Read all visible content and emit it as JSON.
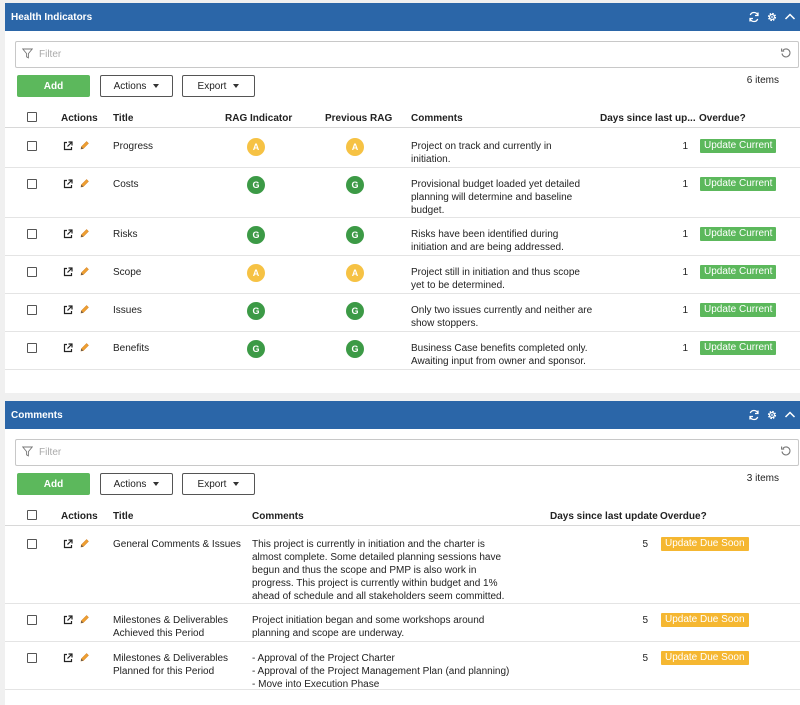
{
  "colors": {
    "header": "#2b66a8",
    "add": "#5cb85c",
    "green_rag": "#3c9a46",
    "amber_rag": "#f6c244",
    "update_current": "#5cb85c",
    "update_due_soon": "#f5b731"
  },
  "health": {
    "title": "Health Indicators",
    "filter_placeholder": "Filter",
    "add_label": "Add",
    "actions_label": "Actions",
    "export_label": "Export",
    "count": "6 items",
    "columns": {
      "actions": "Actions",
      "title": "Title",
      "rag": "RAG Indicator",
      "prev_rag": "Previous RAG",
      "comments": "Comments",
      "days": "Days since last up...",
      "overdue": "Overdue?"
    },
    "rows": [
      {
        "title": "Progress",
        "rag": "A",
        "prev_rag": "A",
        "comment": [
          "Project on track and currently in",
          "initiation."
        ],
        "days": "1",
        "status": "Update Current"
      },
      {
        "title": "Costs",
        "rag": "G",
        "prev_rag": "G",
        "comment": [
          "Provisional budget loaded yet detailed",
          "planning will determine and baseline",
          "budget."
        ],
        "days": "1",
        "status": "Update Current"
      },
      {
        "title": "Risks",
        "rag": "G",
        "prev_rag": "G",
        "comment": [
          "Risks have been identified during",
          "initiation and are being addressed."
        ],
        "days": "1",
        "status": "Update Current"
      },
      {
        "title": "Scope",
        "rag": "A",
        "prev_rag": "A",
        "comment": [
          "Project still in initiation and thus scope",
          "yet to be determined."
        ],
        "days": "1",
        "status": "Update Current"
      },
      {
        "title": "Issues",
        "rag": "G",
        "prev_rag": "G",
        "comment": [
          "Only two issues currently and neither are",
          "show stoppers."
        ],
        "days": "1",
        "status": "Update Current"
      },
      {
        "title": "Benefits",
        "rag": "G",
        "prev_rag": "G",
        "comment": [
          "Business Case benefits completed only.",
          "Awaiting input from owner and sponsor."
        ],
        "days": "1",
        "status": "Update Current"
      }
    ]
  },
  "comments": {
    "title": "Comments",
    "filter_placeholder": "Filter",
    "add_label": "Add",
    "actions_label": "Actions",
    "export_label": "Export",
    "count": "3 items",
    "columns": {
      "actions": "Actions",
      "title": "Title",
      "comments": "Comments",
      "days": "Days since last update",
      "overdue": "Overdue?"
    },
    "rows": [
      {
        "title": [
          "General Comments & Issues"
        ],
        "comment": [
          "This project is currently in initiation and the charter is",
          "almost complete. Some detailed planning sessions have",
          "begun and thus the scope and PMP is also work in",
          "progress. This project is currently within budget and 1%",
          "ahead of schedule and all stakeholders seem committed."
        ],
        "days": "5",
        "status": "Update Due Soon"
      },
      {
        "title": [
          "Milestones & Deliverables",
          "Achieved this Period"
        ],
        "comment": [
          "Project initiation began and some workshops around",
          "planning and scope are underway."
        ],
        "days": "5",
        "status": "Update Due Soon"
      },
      {
        "title": [
          "Milestones & Deliverables",
          "Planned for this Period"
        ],
        "comment": [
          "- Approval of the Project Charter",
          "- Approval of the Project Management Plan (and planning)",
          "- Move into Execution Phase"
        ],
        "days": "5",
        "status": "Update Due Soon"
      }
    ]
  }
}
